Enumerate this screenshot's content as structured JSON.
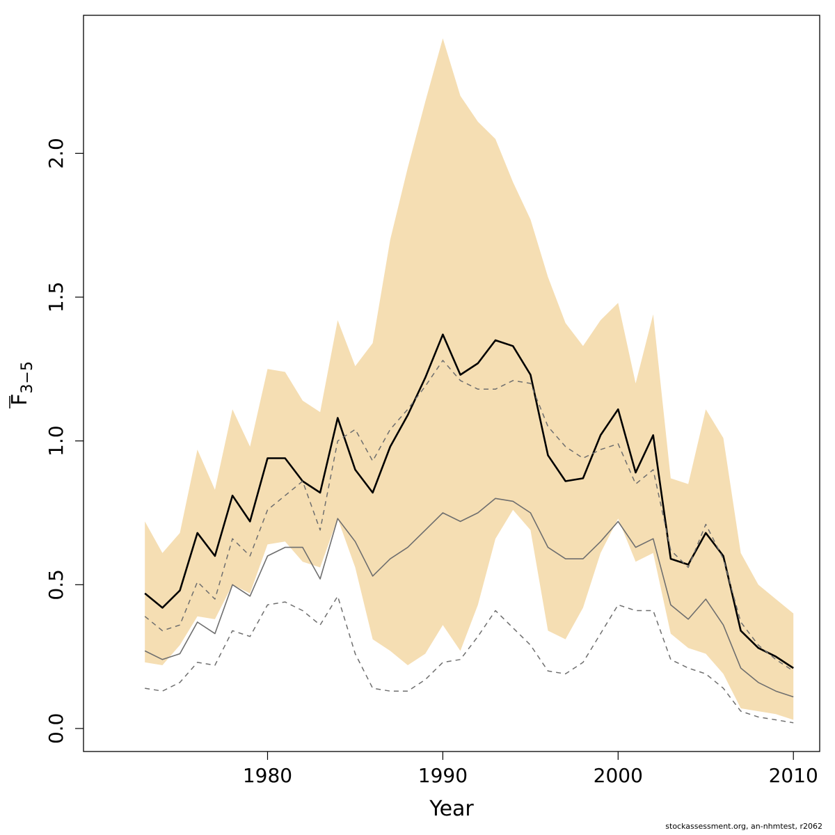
{
  "chart_data": {
    "type": "line",
    "xlabel": "Year",
    "ylabel": {
      "main": "F",
      "sub": "3−5"
    },
    "xlim": [
      1969.5,
      2011.5
    ],
    "ylim": [
      -0.08,
      2.48
    ],
    "x_ticks": [
      1980,
      1990,
      2000,
      2010
    ],
    "y_ticks": [
      "0.0",
      "0.5",
      "1.0",
      "1.5",
      "2.0"
    ],
    "band_color": "#f5deb3",
    "x": [
      1973,
      1974,
      1975,
      1976,
      1977,
      1978,
      1979,
      1980,
      1981,
      1982,
      1983,
      1984,
      1985,
      1986,
      1987,
      1988,
      1989,
      1990,
      1991,
      1992,
      1993,
      1994,
      1995,
      1996,
      1997,
      1998,
      1999,
      2000,
      2001,
      2002,
      2003,
      2004,
      2005,
      2006,
      2007,
      2008,
      2009,
      2010
    ],
    "band_upper": [
      0.72,
      0.61,
      0.68,
      0.97,
      0.83,
      1.11,
      0.98,
      1.25,
      1.24,
      1.14,
      1.1,
      1.42,
      1.26,
      1.34,
      1.7,
      1.95,
      2.18,
      2.4,
      2.2,
      2.11,
      2.05,
      1.9,
      1.77,
      1.57,
      1.41,
      1.33,
      1.42,
      1.48,
      1.2,
      1.44,
      0.87,
      0.85,
      1.11,
      1.01,
      0.61,
      0.5,
      0.45,
      0.4
    ],
    "band_lower": [
      0.23,
      0.22,
      0.29,
      0.39,
      0.38,
      0.5,
      0.47,
      0.64,
      0.65,
      0.58,
      0.56,
      0.73,
      0.56,
      0.31,
      0.27,
      0.22,
      0.26,
      0.36,
      0.27,
      0.43,
      0.66,
      0.76,
      0.69,
      0.34,
      0.31,
      0.42,
      0.61,
      0.73,
      0.58,
      0.61,
      0.33,
      0.28,
      0.26,
      0.19,
      0.07,
      0.06,
      0.05,
      0.03
    ],
    "series": [
      {
        "style": "solid-thick",
        "color": "#000000",
        "values": [
          0.47,
          0.42,
          0.48,
          0.68,
          0.6,
          0.81,
          0.72,
          0.94,
          0.94,
          0.86,
          0.82,
          1.08,
          0.9,
          0.82,
          0.98,
          1.09,
          1.22,
          1.37,
          1.23,
          1.27,
          1.35,
          1.33,
          1.23,
          0.95,
          0.86,
          0.87,
          1.02,
          1.11,
          0.89,
          1.02,
          0.59,
          0.57,
          0.68,
          0.6,
          0.34,
          0.28,
          0.25,
          0.21
        ]
      },
      {
        "style": "solid-thin",
        "color": "#6e6e6e",
        "values": [
          0.27,
          0.24,
          0.26,
          0.37,
          0.33,
          0.5,
          0.46,
          0.6,
          0.63,
          0.63,
          0.52,
          0.73,
          0.65,
          0.53,
          0.59,
          0.63,
          0.69,
          0.75,
          0.72,
          0.75,
          0.8,
          0.79,
          0.75,
          0.63,
          0.59,
          0.59,
          0.65,
          0.72,
          0.63,
          0.66,
          0.43,
          0.38,
          0.45,
          0.36,
          0.21,
          0.16,
          0.13,
          0.11
        ]
      },
      {
        "style": "dashed",
        "color": "#6e6e6e",
        "values": [
          0.39,
          0.34,
          0.36,
          0.51,
          0.45,
          0.66,
          0.6,
          0.76,
          0.81,
          0.86,
          0.69,
          1.0,
          1.04,
          0.93,
          1.04,
          1.11,
          1.19,
          1.28,
          1.21,
          1.18,
          1.18,
          1.21,
          1.2,
          1.05,
          0.98,
          0.94,
          0.97,
          0.99,
          0.85,
          0.9,
          0.62,
          0.56,
          0.71,
          0.59,
          0.37,
          0.29,
          0.24,
          0.2
        ]
      },
      {
        "style": "dashed",
        "color": "#6e6e6e",
        "values": [
          0.14,
          0.13,
          0.16,
          0.23,
          0.22,
          0.34,
          0.32,
          0.43,
          0.44,
          0.41,
          0.36,
          0.46,
          0.26,
          0.14,
          0.13,
          0.13,
          0.17,
          0.23,
          0.24,
          0.32,
          0.41,
          0.35,
          0.29,
          0.2,
          0.19,
          0.23,
          0.33,
          0.43,
          0.41,
          0.41,
          0.24,
          0.21,
          0.19,
          0.14,
          0.06,
          0.04,
          0.03,
          0.02
        ]
      }
    ]
  },
  "footer": {
    "credit": "stockassessment.org, an-nhmtest, r2062"
  }
}
